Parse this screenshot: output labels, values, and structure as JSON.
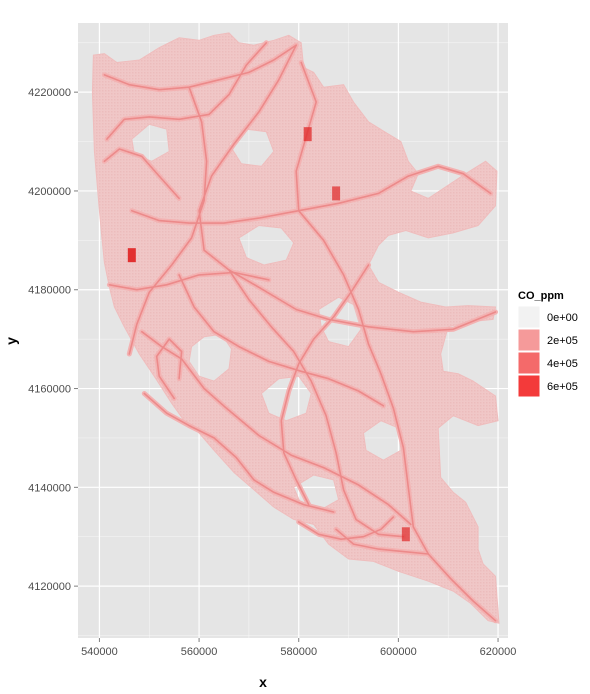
{
  "chart_data": {
    "type": "heatmap",
    "title": "",
    "xlabel": "x",
    "ylabel": "y",
    "xlim": [
      535700,
      622000
    ],
    "ylim": [
      4109500,
      4234000
    ],
    "x_ticks": [
      540000,
      560000,
      580000,
      600000,
      620000
    ],
    "x_tick_labels": [
      "540000",
      "560000",
      "580000",
      "600000",
      "620000"
    ],
    "y_ticks": [
      4120000,
      4140000,
      4160000,
      4180000,
      4200000,
      4220000
    ],
    "y_tick_labels": [
      "4120000",
      "4140000",
      "4160000",
      "4180000",
      "4200000",
      "4220000"
    ],
    "grid": true,
    "legend": {
      "title": "CO_ppm",
      "position": "right",
      "entries": [
        {
          "label": "0e+00",
          "value": 0,
          "color": "#f2f2f2"
        },
        {
          "label": "2e+05",
          "value": 200000,
          "color": "#f59a9a"
        },
        {
          "label": "4e+05",
          "value": 400000,
          "color": "#f46a6a"
        },
        {
          "label": "6e+05",
          "value": 600000,
          "color": "#f33a3a"
        }
      ]
    },
    "colors": {
      "panel": "#e5e5e5",
      "grid": "#ffffff",
      "fill_low": "#f0c7c7",
      "road": "#ec8a8a",
      "hotspot": "#e02828"
    },
    "region_outline": [
      [
        538800,
        4227500
      ],
      [
        541000,
        4227800
      ],
      [
        543500,
        4226000
      ],
      [
        548000,
        4226500
      ],
      [
        552000,
        4229000
      ],
      [
        556000,
        4231000
      ],
      [
        560000,
        4230500
      ],
      [
        563000,
        4231500
      ],
      [
        566000,
        4232000
      ],
      [
        568000,
        4230000
      ],
      [
        571000,
        4229500
      ],
      [
        575000,
        4230500
      ],
      [
        578000,
        4231500
      ],
      [
        580500,
        4230000
      ],
      [
        581000,
        4225000
      ],
      [
        583000,
        4224000
      ],
      [
        585000,
        4221000
      ],
      [
        589000,
        4221500
      ],
      [
        591000,
        4218000
      ],
      [
        594000,
        4214000
      ],
      [
        598000,
        4211500
      ],
      [
        600500,
        4210000
      ],
      [
        602000,
        4206000
      ],
      [
        604000,
        4203500
      ],
      [
        602500,
        4200000
      ],
      [
        606000,
        4198500
      ],
      [
        609000,
        4200500
      ],
      [
        613500,
        4203500
      ],
      [
        617500,
        4206000
      ],
      [
        619800,
        4204000
      ],
      [
        619500,
        4197000
      ],
      [
        616000,
        4193000
      ],
      [
        611000,
        4191500
      ],
      [
        606000,
        4190500
      ],
      [
        601500,
        4192000
      ],
      [
        598000,
        4191000
      ],
      [
        596000,
        4189000
      ],
      [
        594000,
        4185000
      ],
      [
        596000,
        4181500
      ],
      [
        600000,
        4179500
      ],
      [
        604500,
        4177500
      ],
      [
        609500,
        4176500
      ],
      [
        614000,
        4176800
      ],
      [
        619500,
        4176500
      ],
      [
        619000,
        4174000
      ],
      [
        614000,
        4173500
      ],
      [
        610000,
        4172500
      ],
      [
        608500,
        4167000
      ],
      [
        609000,
        4163500
      ],
      [
        612000,
        4163000
      ],
      [
        615000,
        4161500
      ],
      [
        619500,
        4158500
      ],
      [
        620000,
        4153500
      ],
      [
        616000,
        4152500
      ],
      [
        611000,
        4154500
      ],
      [
        608000,
        4152000
      ],
      [
        608500,
        4142000
      ],
      [
        611000,
        4139000
      ],
      [
        613500,
        4137000
      ],
      [
        616000,
        4132000
      ],
      [
        616000,
        4127500
      ],
      [
        617000,
        4124500
      ],
      [
        619500,
        4122000
      ],
      [
        620200,
        4112500
      ],
      [
        618000,
        4113000
      ],
      [
        614500,
        4116500
      ],
      [
        611000,
        4119000
      ],
      [
        606000,
        4121000
      ],
      [
        600000,
        4123000
      ],
      [
        595000,
        4125000
      ],
      [
        590000,
        4125500
      ],
      [
        586000,
        4128500
      ],
      [
        583000,
        4132500
      ],
      [
        579000,
        4133500
      ],
      [
        575000,
        4136000
      ],
      [
        571000,
        4139500
      ],
      [
        567000,
        4143000
      ],
      [
        563000,
        4147500
      ],
      [
        560000,
        4151000
      ],
      [
        557000,
        4153500
      ],
      [
        554500,
        4157000
      ],
      [
        551000,
        4162500
      ],
      [
        548000,
        4167000
      ],
      [
        545000,
        4172500
      ],
      [
        543000,
        4176500
      ],
      [
        542000,
        4180500
      ],
      [
        541000,
        4185500
      ],
      [
        540500,
        4190500
      ],
      [
        540000,
        4196000
      ],
      [
        539500,
        4202000
      ],
      [
        539000,
        4208000
      ],
      [
        538800,
        4214000
      ],
      [
        538600,
        4220000
      ],
      [
        538800,
        4227500
      ]
    ],
    "holes": [
      [
        [
          558500,
          4168500
        ],
        [
          561000,
          4170500
        ],
        [
          564500,
          4171000
        ],
        [
          566500,
          4168000
        ],
        [
          566000,
          4164000
        ],
        [
          563000,
          4161500
        ],
        [
          560000,
          4162500
        ],
        [
          558000,
          4165500
        ]
      ],
      [
        [
          568000,
          4190500
        ],
        [
          572000,
          4193000
        ],
        [
          576500,
          4192500
        ],
        [
          579000,
          4189500
        ],
        [
          577500,
          4186000
        ],
        [
          573000,
          4185000
        ],
        [
          569500,
          4186500
        ]
      ],
      [
        [
          572500,
          4159000
        ],
        [
          576000,
          4162000
        ],
        [
          580000,
          4162500
        ],
        [
          582500,
          4159000
        ],
        [
          581500,
          4155000
        ],
        [
          577500,
          4153500
        ],
        [
          574000,
          4155000
        ]
      ],
      [
        [
          584000,
          4176000
        ],
        [
          588000,
          4178500
        ],
        [
          591000,
          4177000
        ],
        [
          592500,
          4172000
        ],
        [
          590000,
          4168500
        ],
        [
          586000,
          4169500
        ],
        [
          584500,
          4172500
        ]
      ],
      [
        [
          566000,
          4209500
        ],
        [
          569500,
          4212500
        ],
        [
          573500,
          4212000
        ],
        [
          575000,
          4208000
        ],
        [
          572500,
          4205000
        ],
        [
          568500,
          4205500
        ]
      ],
      [
        [
          546500,
          4210500
        ],
        [
          550000,
          4213500
        ],
        [
          553500,
          4212500
        ],
        [
          554000,
          4208000
        ],
        [
          550500,
          4206000
        ],
        [
          547000,
          4207500
        ]
      ],
      [
        [
          593000,
          4151000
        ],
        [
          596500,
          4153500
        ],
        [
          600000,
          4152000
        ],
        [
          600500,
          4147500
        ],
        [
          597000,
          4145500
        ],
        [
          593500,
          4147500
        ]
      ],
      [
        [
          579000,
          4140000
        ],
        [
          583000,
          4142500
        ],
        [
          587000,
          4141500
        ],
        [
          588000,
          4137500
        ],
        [
          584500,
          4135500
        ],
        [
          580500,
          4136500
        ]
      ]
    ],
    "roads": [
      [
        [
          541000,
          4223500
        ],
        [
          546000,
          4221500
        ],
        [
          552000,
          4220500
        ],
        [
          558000,
          4221000
        ],
        [
          564000,
          4222500
        ],
        [
          570000,
          4224000
        ],
        [
          575000,
          4226500
        ],
        [
          579500,
          4229500
        ]
      ],
      [
        [
          541500,
          4210500
        ],
        [
          545000,
          4214500
        ],
        [
          550000,
          4215000
        ],
        [
          556000,
          4214500
        ],
        [
          562000,
          4215500
        ],
        [
          566000,
          4219500
        ],
        [
          569500,
          4225500
        ],
        [
          573500,
          4230000
        ]
      ],
      [
        [
          579500,
          4229500
        ],
        [
          576000,
          4222500
        ],
        [
          572000,
          4216000
        ],
        [
          567000,
          4209500
        ],
        [
          562500,
          4203000
        ],
        [
          560000,
          4196000
        ],
        [
          561000,
          4188000
        ],
        [
          566000,
          4184000
        ],
        [
          572000,
          4180500
        ],
        [
          579500,
          4176000
        ],
        [
          586000,
          4174000
        ],
        [
          594000,
          4172500
        ],
        [
          603000,
          4171500
        ],
        [
          611000,
          4172000
        ],
        [
          619500,
          4175500
        ]
      ],
      [
        [
          580500,
          4226000
        ],
        [
          583500,
          4218000
        ],
        [
          581500,
          4211000
        ],
        [
          579500,
          4204000
        ],
        [
          580000,
          4196000
        ],
        [
          585000,
          4190000
        ],
        [
          589000,
          4183000
        ],
        [
          592000,
          4176000
        ],
        [
          594000,
          4169000
        ],
        [
          596500,
          4163000
        ],
        [
          599000,
          4156000
        ],
        [
          601000,
          4148000
        ],
        [
          602000,
          4140000
        ],
        [
          603000,
          4132000
        ],
        [
          606000,
          4126500
        ],
        [
          610500,
          4121500
        ],
        [
          615000,
          4117000
        ],
        [
          619500,
          4113000
        ]
      ],
      [
        [
          558000,
          4221000
        ],
        [
          560500,
          4214000
        ],
        [
          561500,
          4206000
        ],
        [
          561000,
          4198000
        ],
        [
          558500,
          4190500
        ],
        [
          554500,
          4185000
        ],
        [
          550000,
          4179500
        ],
        [
          547500,
          4173000
        ],
        [
          546000,
          4167000
        ]
      ],
      [
        [
          546500,
          4196000
        ],
        [
          552000,
          4194000
        ],
        [
          558000,
          4193500
        ],
        [
          565000,
          4193500
        ],
        [
          572000,
          4194500
        ],
        [
          580000,
          4196000
        ],
        [
          588000,
          4197500
        ],
        [
          596000,
          4199500
        ],
        [
          602000,
          4203000
        ]
      ],
      [
        [
          542000,
          4181000
        ],
        [
          547500,
          4180000
        ],
        [
          553500,
          4181000
        ],
        [
          560000,
          4183000
        ],
        [
          567000,
          4183500
        ],
        [
          574000,
          4182000
        ]
      ],
      [
        [
          548500,
          4171500
        ],
        [
          552500,
          4168500
        ],
        [
          556500,
          4166000
        ],
        [
          561000,
          4160000
        ],
        [
          565500,
          4156000
        ],
        [
          572000,
          4150500
        ],
        [
          578500,
          4146500
        ],
        [
          585000,
          4144000
        ],
        [
          592000,
          4140500
        ],
        [
          598000,
          4136500
        ],
        [
          602500,
          4132500
        ]
      ],
      [
        [
          556000,
          4183000
        ],
        [
          559000,
          4176500
        ],
        [
          563000,
          4171500
        ],
        [
          568000,
          4168500
        ],
        [
          574000,
          4165500
        ],
        [
          580500,
          4163500
        ],
        [
          586000,
          4162000
        ],
        [
          592000,
          4159500
        ],
        [
          597000,
          4156500
        ]
      ],
      [
        [
          566000,
          4184000
        ],
        [
          570000,
          4178000
        ],
        [
          574500,
          4172500
        ],
        [
          579000,
          4167500
        ],
        [
          582500,
          4161500
        ],
        [
          585500,
          4154500
        ],
        [
          587500,
          4147000
        ],
        [
          589000,
          4139500
        ],
        [
          591500,
          4133500
        ],
        [
          596000,
          4130500
        ],
        [
          601000,
          4130000
        ]
      ],
      [
        [
          549000,
          4159000
        ],
        [
          553500,
          4155000
        ],
        [
          558000,
          4152500
        ],
        [
          563000,
          4150000
        ],
        [
          567500,
          4146000
        ],
        [
          571000,
          4141500
        ],
        [
          575000,
          4139000
        ],
        [
          581000,
          4136500
        ],
        [
          587000,
          4135000
        ]
      ],
      [
        [
          594000,
          4185000
        ],
        [
          590500,
          4179500
        ],
        [
          587000,
          4174500
        ],
        [
          583000,
          4170000
        ],
        [
          580000,
          4165000
        ],
        [
          578000,
          4159500
        ],
        [
          576500,
          4153500
        ],
        [
          577000,
          4147000
        ],
        [
          579500,
          4141500
        ],
        [
          582000,
          4136500
        ]
      ],
      [
        [
          580000,
          4133000
        ],
        [
          584000,
          4130500
        ],
        [
          588500,
          4129500
        ],
        [
          593000,
          4130000
        ],
        [
          596500,
          4131500
        ],
        [
          599000,
          4134000
        ]
      ],
      [
        [
          606000,
          4126500
        ],
        [
          601000,
          4127000
        ],
        [
          596000,
          4127500
        ],
        [
          591000,
          4128500
        ],
        [
          587500,
          4131500
        ]
      ],
      [
        [
          556000,
          4198500
        ],
        [
          552000,
          4203000
        ],
        [
          548500,
          4207000
        ],
        [
          544000,
          4208500
        ],
        [
          541000,
          4206000
        ]
      ],
      [
        [
          602000,
          4203000
        ],
        [
          608000,
          4205000
        ],
        [
          613000,
          4203500
        ],
        [
          618500,
          4199500
        ]
      ],
      [
        [
          555000,
          4158000
        ],
        [
          552000,
          4162500
        ],
        [
          551500,
          4166500
        ],
        [
          554000,
          4170000
        ],
        [
          556500,
          4167500
        ],
        [
          556000,
          4162000
        ]
      ]
    ],
    "hotspots": [
      {
        "x": 546500,
        "y": 4187000,
        "value": 600000
      },
      {
        "x": 581800,
        "y": 4211500,
        "value": 400000
      },
      {
        "x": 587500,
        "y": 4199500,
        "value": 350000
      },
      {
        "x": 601500,
        "y": 4130500,
        "value": 350000
      }
    ]
  }
}
